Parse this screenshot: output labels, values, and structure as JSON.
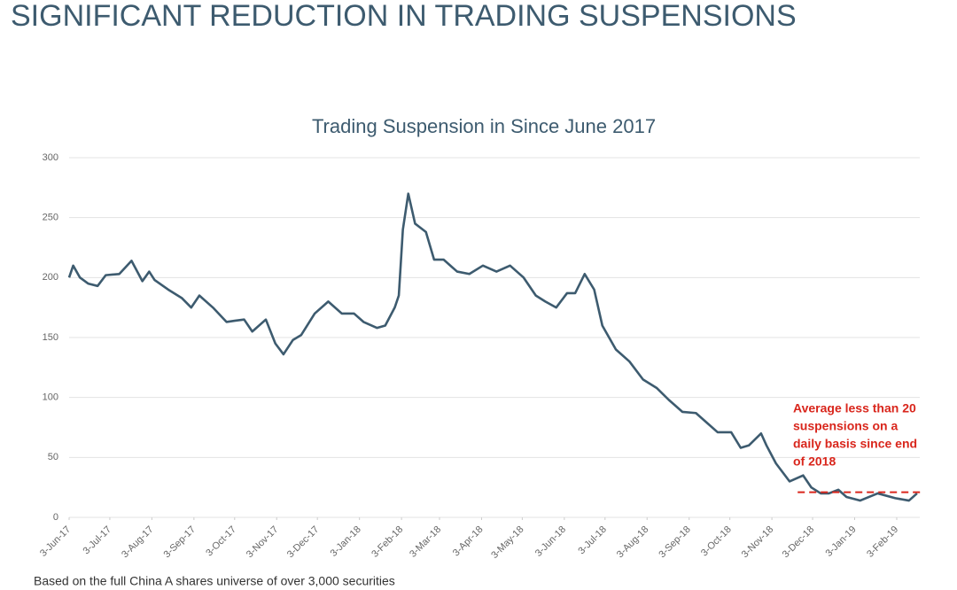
{
  "header": {
    "title": "SIGNIFICANT REDUCTION IN TRADING SUSPENSIONS"
  },
  "footnote": "Based on the full China A shares universe of over 3,000 securities",
  "chart_data": {
    "type": "line",
    "title": "Trading Suspension in Since June 2017",
    "x": [
      "2017-06-03",
      "2017-06-06",
      "2017-06-11",
      "2017-06-17",
      "2017-06-24",
      "2017-06-30",
      "2017-07-10",
      "2017-07-19",
      "2017-07-27",
      "2017-08-01",
      "2017-08-05",
      "2017-08-15",
      "2017-08-25",
      "2017-09-01",
      "2017-09-07",
      "2017-09-17",
      "2017-09-27",
      "2017-10-03",
      "2017-10-10",
      "2017-10-16",
      "2017-10-26",
      "2017-11-02",
      "2017-11-08",
      "2017-11-15",
      "2017-11-21",
      "2017-12-01",
      "2017-12-11",
      "2017-12-21",
      "2017-12-30",
      "2018-01-06",
      "2018-01-16",
      "2018-01-22",
      "2018-01-29",
      "2018-02-01",
      "2018-02-04",
      "2018-02-08",
      "2018-02-13",
      "2018-02-21",
      "2018-02-27",
      "2018-03-06",
      "2018-03-16",
      "2018-03-25",
      "2018-04-04",
      "2018-04-14",
      "2018-04-24",
      "2018-05-04",
      "2018-05-13",
      "2018-05-20",
      "2018-05-28",
      "2018-06-05",
      "2018-06-11",
      "2018-06-18",
      "2018-06-25",
      "2018-07-01",
      "2018-07-11",
      "2018-07-21",
      "2018-07-31",
      "2018-08-10",
      "2018-08-19",
      "2018-08-29",
      "2018-09-08",
      "2018-09-15",
      "2018-09-24",
      "2018-10-04",
      "2018-10-11",
      "2018-10-17",
      "2018-10-26",
      "2018-10-30",
      "2018-11-06",
      "2018-11-16",
      "2018-11-26",
      "2018-12-02",
      "2018-12-09",
      "2018-12-15",
      "2018-12-22",
      "2018-12-28",
      "2019-01-07",
      "2019-01-20",
      "2019-02-02",
      "2019-02-12",
      "2019-02-18"
    ],
    "series": [
      {
        "name": "Trading Suspension",
        "color": "#3d5b6f",
        "values": [
          200,
          210,
          200,
          195,
          193,
          202,
          203,
          214,
          197,
          205,
          198,
          190,
          183,
          175,
          185,
          175,
          163,
          164,
          165,
          155,
          165,
          145,
          136,
          148,
          152,
          170,
          180,
          170,
          170,
          163,
          158,
          160,
          175,
          185,
          240,
          270,
          245,
          238,
          215,
          215,
          205,
          203,
          210,
          205,
          210,
          200,
          185,
          180,
          175,
          187,
          187,
          203,
          190,
          160,
          140,
          130,
          115,
          108,
          98,
          88,
          87,
          80,
          71,
          71,
          58,
          60,
          70,
          60,
          45,
          30,
          35,
          25,
          20,
          20,
          23,
          17,
          14,
          20,
          16,
          14,
          20
        ]
      }
    ],
    "xlim": [
      "2017-06-03",
      "2019-02-20"
    ],
    "xticks": [
      {
        "value": "2017-06-03",
        "label": "3-Jun-17"
      },
      {
        "value": "2017-07-03",
        "label": "3-Jul-17"
      },
      {
        "value": "2017-08-03",
        "label": "3-Aug-17"
      },
      {
        "value": "2017-09-03",
        "label": "3-Sep-17"
      },
      {
        "value": "2017-10-03",
        "label": "3-Oct-17"
      },
      {
        "value": "2017-11-03",
        "label": "3-Nov-17"
      },
      {
        "value": "2017-12-03",
        "label": "3-Dec-17"
      },
      {
        "value": "2018-01-03",
        "label": "3-Jan-18"
      },
      {
        "value": "2018-02-03",
        "label": "3-Feb-18"
      },
      {
        "value": "2018-03-03",
        "label": "3-Mar-18"
      },
      {
        "value": "2018-04-03",
        "label": "3-Apr-18"
      },
      {
        "value": "2018-05-03",
        "label": "3-May-18"
      },
      {
        "value": "2018-06-03",
        "label": "3-Jun-18"
      },
      {
        "value": "2018-07-03",
        "label": "3-Jul-18"
      },
      {
        "value": "2018-08-03",
        "label": "3-Aug-18"
      },
      {
        "value": "2018-09-03",
        "label": "3-Sep-18"
      },
      {
        "value": "2018-10-03",
        "label": "3-Oct-18"
      },
      {
        "value": "2018-11-03",
        "label": "3-Nov-18"
      },
      {
        "value": "2018-12-03",
        "label": "3-Dec-18"
      },
      {
        "value": "2019-01-03",
        "label": "3-Jan-19"
      },
      {
        "value": "2019-02-03",
        "label": "3-Feb-19"
      }
    ],
    "ylim": [
      0,
      300
    ],
    "yticks": [
      0,
      50,
      100,
      150,
      200,
      250,
      300
    ],
    "grid": true,
    "annotation": {
      "lines": [
        "Average less than 20",
        "suspensions on a",
        "daily basis since end",
        "of 2018"
      ],
      "value": 21,
      "start": "2018-11-22",
      "color": "#d9261c"
    }
  }
}
